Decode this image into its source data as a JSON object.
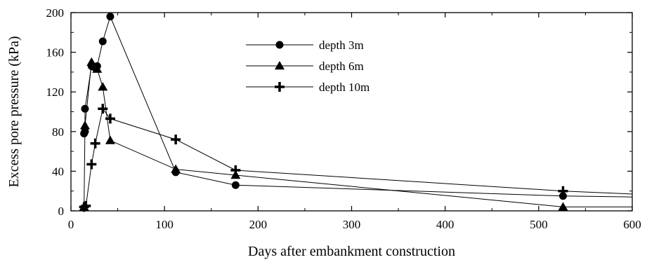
{
  "chart_data": {
    "type": "line",
    "title": "",
    "xlabel": "Days after embankment construction",
    "ylabel": "Excess pore pressure (kPa)",
    "xlim": [
      0,
      600
    ],
    "ylim": [
      0,
      200
    ],
    "xticks": [
      "0",
      "100",
      "200",
      "300",
      "400",
      "500",
      "600"
    ],
    "yticks": [
      "0",
      "40",
      "80",
      "120",
      "160",
      "200"
    ],
    "grid": false,
    "legend_position": "top-center",
    "series": [
      {
        "name": "depth 3m",
        "marker": "circle",
        "points": [
          [
            14,
            78
          ],
          [
            15,
            80
          ],
          [
            15,
            103
          ],
          [
            22,
            146
          ],
          [
            25,
            145
          ],
          [
            28,
            146
          ],
          [
            34,
            171
          ],
          [
            42,
            196
          ],
          [
            112,
            39
          ],
          [
            176,
            26
          ],
          [
            526,
            15
          ],
          [
            600,
            14
          ]
        ]
      },
      {
        "name": "depth 6m",
        "marker": "triangle",
        "points": [
          [
            14,
            4
          ],
          [
            15,
            86
          ],
          [
            22,
            150
          ],
          [
            28,
            143
          ],
          [
            34,
            125
          ],
          [
            42,
            71
          ],
          [
            112,
            42
          ],
          [
            176,
            36
          ],
          [
            526,
            4
          ],
          [
            600,
            4
          ]
        ]
      },
      {
        "name": "depth 10m",
        "marker": "plus",
        "points": [
          [
            14,
            4
          ],
          [
            16,
            5
          ],
          [
            22,
            47
          ],
          [
            26,
            68
          ],
          [
            34,
            103
          ],
          [
            42,
            93
          ],
          [
            112,
            72
          ],
          [
            176,
            41
          ],
          [
            526,
            20
          ],
          [
            600,
            17
          ]
        ]
      }
    ]
  }
}
